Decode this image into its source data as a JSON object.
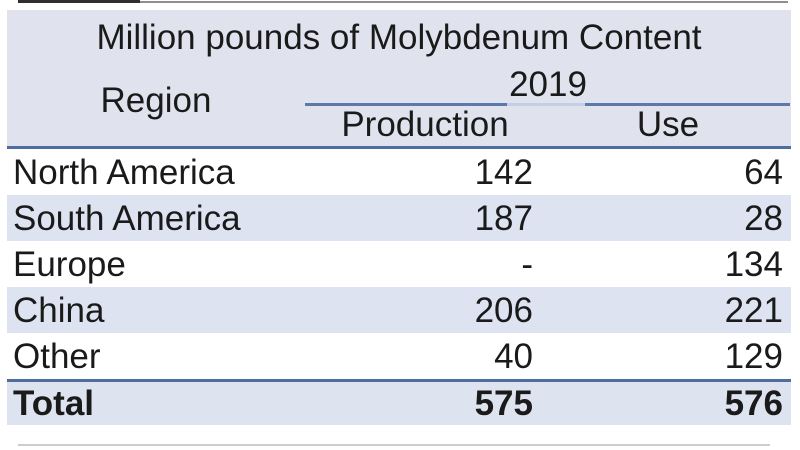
{
  "table": {
    "title": "Million pounds of Molybdenum Content",
    "region_header": "Region",
    "year_header": "2019",
    "columns": {
      "production": "Production",
      "use": "Use"
    },
    "rows": [
      {
        "region": "North America",
        "production": "142",
        "use": "64"
      },
      {
        "region": "South America",
        "production": "187",
        "use": "28"
      },
      {
        "region": "Europe",
        "production": "-",
        "use": "134"
      },
      {
        "region": "China",
        "production": "206",
        "use": "221"
      },
      {
        "region": "Other",
        "production": "40",
        "use": "129"
      }
    ],
    "total_row": {
      "region": "Total",
      "production": "575",
      "use": "576"
    }
  },
  "chart_data": {
    "type": "table",
    "title": "Million pounds of Molybdenum Content",
    "year": "2019",
    "columns": [
      "Region",
      "Production",
      "Use"
    ],
    "rows": [
      [
        "North America",
        142,
        64
      ],
      [
        "South America",
        187,
        28
      ],
      [
        "Europe",
        "-",
        134
      ],
      [
        "China",
        206,
        221
      ],
      [
        "Other",
        40,
        129
      ],
      [
        "Total",
        575,
        576
      ]
    ]
  },
  "colors": {
    "header_bg": "#e0e3ee",
    "alt_row_bg": "#dde3f0",
    "total_row_bg": "#dee3f0",
    "dark_rule": "#4f6d9d",
    "year_rule": "#5b7aa9",
    "year_rule_gap": "#c3cfe4",
    "text": "#1a1a1a"
  }
}
